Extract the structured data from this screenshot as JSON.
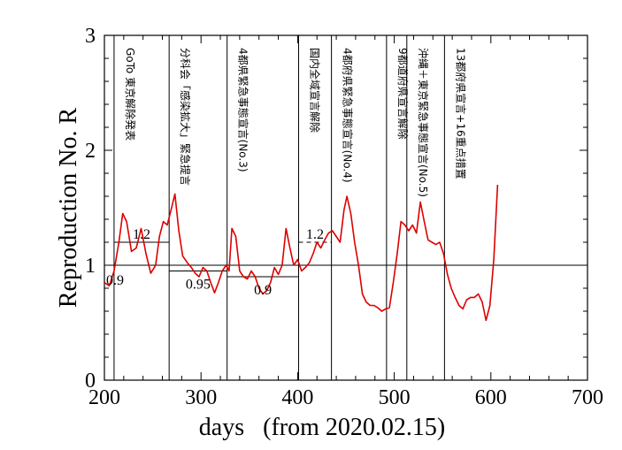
{
  "chart_data": {
    "type": "line",
    "title": "",
    "xlabel": "days   (from 2020.02.15)",
    "ylabel": "Reproduction No.  R",
    "xlim": [
      200,
      700
    ],
    "ylim": [
      0,
      3
    ],
    "xticks": [
      "200",
      "300",
      "400",
      "500",
      "600",
      "700"
    ],
    "yticks": [
      "0",
      "1",
      "2",
      "3"
    ],
    "series": [
      {
        "color": "#dd0000",
        "x": [
          200,
          205,
          210,
          215,
          219,
          223,
          228,
          233,
          238,
          243,
          248,
          253,
          257,
          261,
          265,
          269,
          273,
          277,
          281,
          286,
          290,
          294,
          298,
          302,
          306,
          310,
          314,
          318,
          322,
          326,
          329,
          332,
          336,
          340,
          344,
          348,
          352,
          356,
          360,
          364,
          368,
          372,
          376,
          380,
          384,
          388,
          392,
          396,
          400,
          404,
          408,
          412,
          416,
          420,
          424,
          428,
          432,
          436,
          440,
          444,
          448,
          451,
          455,
          459,
          463,
          467,
          471,
          475,
          479,
          483,
          487,
          491,
          495,
          499,
          503,
          507,
          511,
          515,
          519,
          523,
          527,
          531,
          535,
          539,
          543,
          547,
          551,
          555,
          559,
          563,
          567,
          571,
          575,
          579,
          583,
          587,
          591,
          595,
          599,
          603,
          607
        ],
        "y": [
          0.85,
          0.82,
          0.95,
          1.2,
          1.45,
          1.38,
          1.12,
          1.15,
          1.32,
          1.1,
          0.93,
          1.0,
          1.25,
          1.38,
          1.35,
          1.48,
          1.62,
          1.3,
          1.08,
          1.02,
          0.98,
          0.93,
          0.9,
          0.98,
          0.95,
          0.85,
          0.76,
          0.85,
          0.95,
          1.0,
          0.95,
          1.32,
          1.25,
          0.95,
          0.9,
          0.88,
          0.95,
          0.9,
          0.8,
          0.75,
          0.78,
          0.85,
          0.98,
          0.92,
          1.0,
          1.32,
          1.15,
          1.0,
          1.05,
          0.95,
          0.98,
          1.02,
          1.1,
          1.2,
          1.15,
          1.22,
          1.28,
          1.3,
          1.25,
          1.2,
          1.48,
          1.6,
          1.45,
          1.2,
          1.0,
          0.75,
          0.68,
          0.65,
          0.65,
          0.63,
          0.6,
          0.62,
          0.63,
          0.85,
          1.1,
          1.38,
          1.35,
          1.3,
          1.35,
          1.28,
          1.55,
          1.38,
          1.22,
          1.2,
          1.18,
          1.2,
          1.1,
          0.92,
          0.8,
          0.72,
          0.65,
          0.62,
          0.7,
          0.72,
          0.72,
          0.75,
          0.68,
          0.52,
          0.65,
          1.05,
          1.7
        ]
      }
    ],
    "reference_line": {
      "y": 1
    },
    "events": [
      {
        "day": 210,
        "label": "GoTo 東京解除発表"
      },
      {
        "day": 267,
        "label": "分科会「感染拡大」緊急提言"
      },
      {
        "day": 327,
        "label": "4都県緊急事態宣言(No.3)"
      },
      {
        "day": 401,
        "label": "国内全域宣言解除"
      },
      {
        "day": 435,
        "label": "4都府県緊急事態宣言(No.4)"
      },
      {
        "day": 492,
        "label": "9都道府県宣言解除"
      },
      {
        "day": 513,
        "label": "沖縄＋東京緊急事態宣言(No.5)"
      },
      {
        "day": 552,
        "label": "13都府県宣言+16重点措置"
      }
    ],
    "levels": [
      {
        "x0": 210,
        "x1": 267,
        "y": 1.2,
        "label": "1.2",
        "dashed": false
      },
      {
        "x0": 267,
        "x1": 327,
        "y": 0.95,
        "label": "0.95",
        "dashed": false
      },
      {
        "x0": 327,
        "x1": 401,
        "y": 0.9,
        "label": "0.9",
        "dashed": false
      },
      {
        "x0": 401,
        "x1": 435,
        "y": 1.2,
        "label": "1.2",
        "dashed": true
      }
    ],
    "extra_labels": [
      {
        "x": 200,
        "y": 0.9,
        "text": "0.9"
      }
    ],
    "grid": false,
    "legend": "none"
  }
}
